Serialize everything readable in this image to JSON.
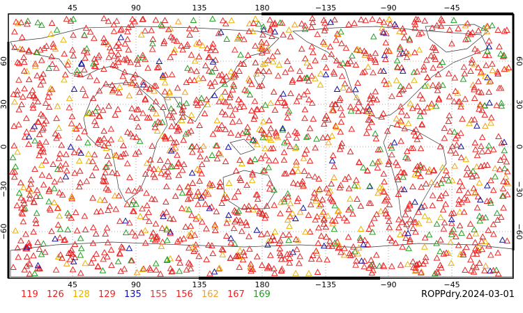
{
  "map": {
    "caption": "ROPPdry.2024-03-01",
    "lon_ticks": [
      "45",
      "90",
      "135",
      "180",
      "−135",
      "−90",
      "−45"
    ],
    "lat_ticks": [
      "60",
      "30",
      "0",
      "−30",
      "−60"
    ],
    "legend": [
      {
        "label": "119",
        "color": "#ee2222"
      },
      {
        "label": "126",
        "color": "#dd2222"
      },
      {
        "label": "128",
        "color": "#e8b400"
      },
      {
        "label": "129",
        "color": "#ee2222"
      },
      {
        "label": "135",
        "color": "#1010a0"
      },
      {
        "label": "155",
        "color": "#ee3333"
      },
      {
        "label": "156",
        "color": "#ee2222"
      },
      {
        "label": "162",
        "color": "#f0a020"
      },
      {
        "label": "167",
        "color": "#ee2222"
      },
      {
        "label": "169",
        "color": "#20a020"
      }
    ]
  }
}
